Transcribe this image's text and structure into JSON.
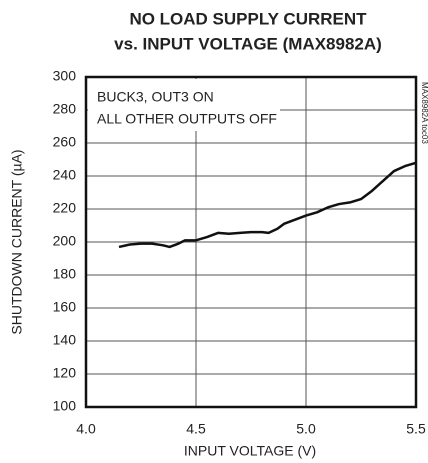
{
  "chart_data": {
    "type": "line",
    "title": [
      "NO LOAD SUPPLY CURRENT",
      "vs. INPUT VOLTAGE (MAX8982A)"
    ],
    "annotation": [
      "BUCK3, OUT3 ON",
      "ALL OTHER OUTPUTS OFF"
    ],
    "side_label": "MAX8982A toc03",
    "xlabel": "INPUT VOLTAGE (V)",
    "ylabel": "SHUTDOWN CURRENT (µA)",
    "x": [
      4.15,
      4.2,
      4.25,
      4.3,
      4.35,
      4.38,
      4.42,
      4.45,
      4.5,
      4.55,
      4.6,
      4.65,
      4.7,
      4.75,
      4.8,
      4.83,
      4.87,
      4.9,
      5.0,
      5.05,
      5.1,
      5.15,
      5.2,
      5.25,
      5.3,
      5.35,
      5.4,
      5.45,
      5.5
    ],
    "series": [
      {
        "color": "#111111",
        "values": [
          197,
          198.5,
          199,
          199,
          198,
          197,
          199,
          201,
          201,
          203,
          205.5,
          205,
          205.5,
          206,
          206,
          205.5,
          208,
          211,
          216,
          218,
          221,
          223,
          224,
          226,
          231,
          237,
          243,
          246,
          248
        ]
      }
    ],
    "xlim": [
      4,
      5.5
    ],
    "xticks": [
      {
        "value": 4,
        "label": "4.0"
      },
      4.5,
      {
        "value": 5,
        "label": "5.0"
      },
      5.5
    ],
    "ylim": [
      100,
      300
    ],
    "yticks": [
      100,
      120,
      140,
      160,
      180,
      200,
      220,
      240,
      260,
      280,
      300
    ],
    "grid": true
  }
}
